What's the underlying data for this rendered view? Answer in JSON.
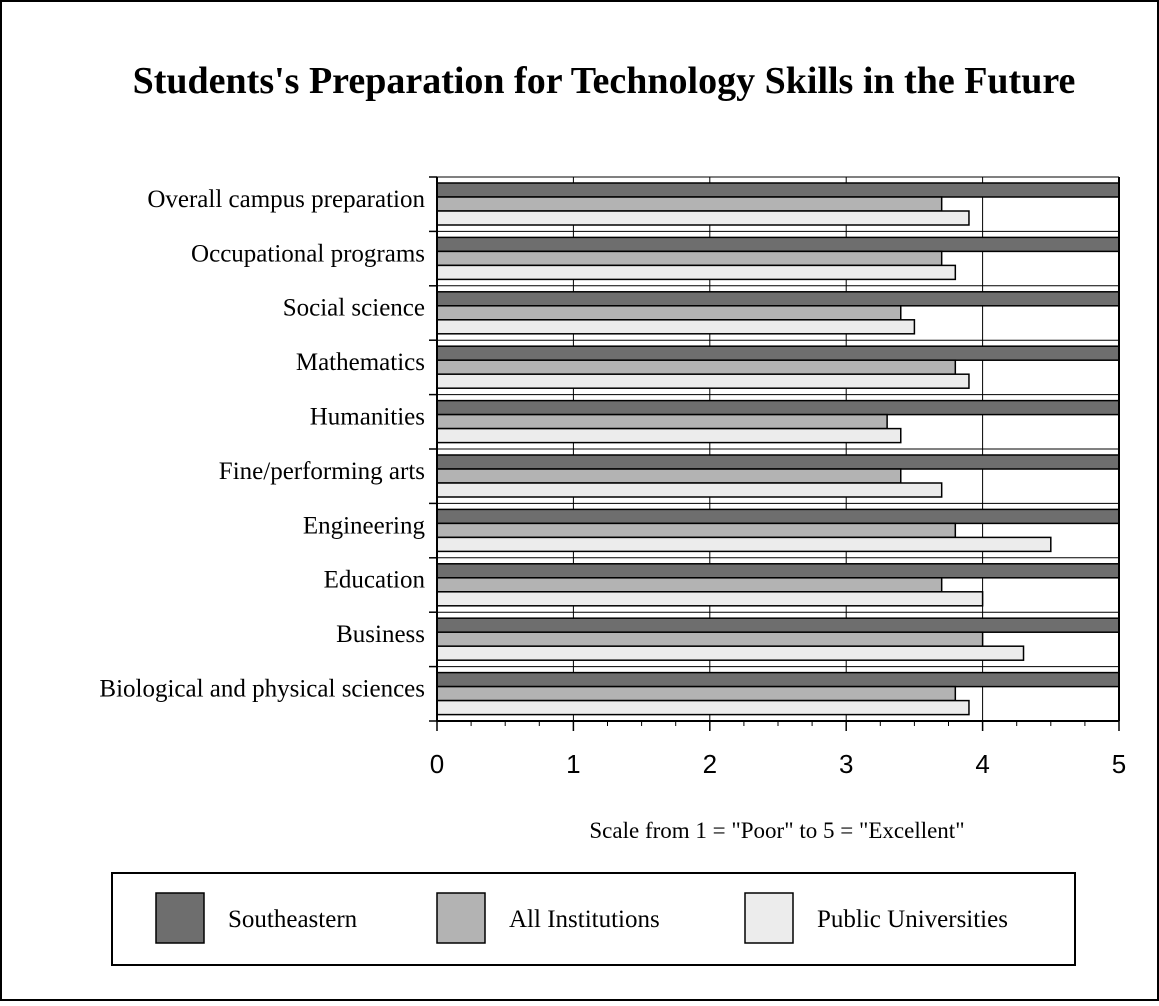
{
  "chart_data": {
    "type": "bar",
    "orientation": "horizontal",
    "title": "Students's Preparation for Technology Skills in the Future",
    "xlabel": "Scale from 1 = \"Poor\" to 5 = \"Excellent\"",
    "ylabel": "",
    "xlim": [
      0,
      5
    ],
    "x_ticks": [
      "0",
      "1",
      "2",
      "3",
      "4",
      "5"
    ],
    "grid": "vertical",
    "legend_position": "bottom",
    "categories": [
      "Overall campus preparation",
      "Occupational programs",
      "Social science",
      "Mathematics",
      "Humanities",
      "Fine/performing arts",
      "Engineering",
      "Education",
      "Business",
      "Biological and physical sciences"
    ],
    "series": [
      {
        "name": "Southeastern",
        "color": "#6e6e6e",
        "values": [
          5,
          5,
          5,
          5,
          5,
          5,
          5,
          5,
          5,
          5
        ]
      },
      {
        "name": "All Institutions",
        "color": "#b3b3b3",
        "values": [
          3.7,
          3.7,
          3.4,
          3.8,
          3.3,
          3.4,
          3.8,
          3.7,
          4.0,
          3.8
        ]
      },
      {
        "name": "Public Universities",
        "color": "#ececec",
        "values": [
          3.9,
          3.8,
          3.5,
          3.9,
          3.4,
          3.7,
          4.5,
          4.0,
          4.3,
          3.9
        ]
      }
    ]
  }
}
